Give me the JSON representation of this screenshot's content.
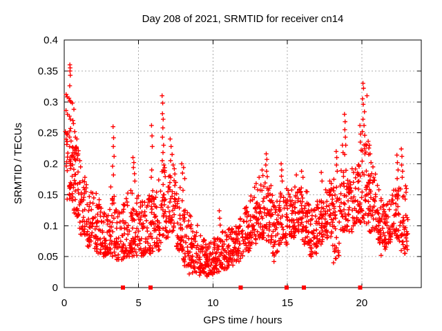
{
  "chart_data": {
    "type": "scatter",
    "title": "Day 208 of 2021, SRMTID for receiver cn14",
    "xlabel": "GPS time / hours",
    "ylabel": "SRMTID / TECUs",
    "xlim": [
      0,
      24
    ],
    "ylim": [
      0,
      0.4
    ],
    "xticks": [
      "0",
      "5",
      "10",
      "15",
      "20"
    ],
    "yticks": [
      "0",
      "0.05",
      "0.1",
      "0.15",
      "0.2",
      "0.25",
      "0.3",
      "0.35",
      "0.4"
    ],
    "grid": true,
    "legend": false,
    "marker": {
      "shape": "plus",
      "color": "#ff0000",
      "size": 6.6
    },
    "colors": {
      "grid": "#a8a8a8",
      "axis": "#000000",
      "background": "#ffffff",
      "points": "#ff0000"
    },
    "axis_event_markers": {
      "shape": "filled-square",
      "color": "#ff0000",
      "t": [
        3.95,
        5.8,
        11.85,
        14.95,
        16.1,
        19.9
      ]
    },
    "density_bands": [
      [
        0.1,
        0.6,
        0.14,
        0.26,
        44
      ],
      [
        0.6,
        1.0,
        0.115,
        0.235,
        42
      ],
      [
        1.0,
        1.5,
        0.085,
        0.185,
        40
      ],
      [
        1.5,
        2.0,
        0.065,
        0.155,
        40
      ],
      [
        2.0,
        2.5,
        0.055,
        0.135,
        40
      ],
      [
        2.5,
        3.0,
        0.05,
        0.125,
        40
      ],
      [
        3.0,
        3.5,
        0.05,
        0.165,
        40
      ],
      [
        3.5,
        4.0,
        0.045,
        0.135,
        40
      ],
      [
        4.0,
        4.5,
        0.05,
        0.16,
        40
      ],
      [
        4.5,
        5.0,
        0.05,
        0.155,
        40
      ],
      [
        5.0,
        5.5,
        0.05,
        0.145,
        40
      ],
      [
        5.5,
        6.0,
        0.055,
        0.16,
        40
      ],
      [
        6.0,
        6.5,
        0.06,
        0.175,
        40
      ],
      [
        6.5,
        7.0,
        0.08,
        0.195,
        40
      ],
      [
        7.0,
        7.5,
        0.09,
        0.185,
        40
      ],
      [
        7.5,
        8.0,
        0.06,
        0.165,
        40
      ],
      [
        8.0,
        8.5,
        0.035,
        0.125,
        40
      ],
      [
        8.5,
        9.0,
        0.022,
        0.105,
        42
      ],
      [
        9.0,
        9.5,
        0.024,
        0.085,
        42
      ],
      [
        9.5,
        10.0,
        0.02,
        0.075,
        42
      ],
      [
        10.0,
        10.5,
        0.025,
        0.085,
        40
      ],
      [
        10.5,
        11.0,
        0.03,
        0.092,
        40
      ],
      [
        11.0,
        11.5,
        0.036,
        0.1,
        40
      ],
      [
        11.5,
        12.0,
        0.042,
        0.112,
        40
      ],
      [
        12.0,
        12.5,
        0.055,
        0.13,
        40
      ],
      [
        12.5,
        13.0,
        0.07,
        0.15,
        40
      ],
      [
        13.0,
        13.5,
        0.08,
        0.17,
        40
      ],
      [
        13.5,
        14.0,
        0.07,
        0.17,
        40
      ],
      [
        14.0,
        14.5,
        0.05,
        0.14,
        40
      ],
      [
        14.5,
        15.0,
        0.07,
        0.16,
        40
      ],
      [
        15.0,
        15.5,
        0.08,
        0.16,
        40
      ],
      [
        15.5,
        16.0,
        0.09,
        0.17,
        40
      ],
      [
        16.0,
        16.5,
        0.07,
        0.16,
        40
      ],
      [
        16.5,
        17.0,
        0.05,
        0.13,
        40
      ],
      [
        17.0,
        17.5,
        0.07,
        0.15,
        40
      ],
      [
        17.5,
        18.0,
        0.08,
        0.16,
        40
      ],
      [
        18.0,
        18.5,
        0.045,
        0.18,
        40
      ],
      [
        18.5,
        19.0,
        0.085,
        0.19,
        40
      ],
      [
        19.0,
        19.5,
        0.09,
        0.18,
        40
      ],
      [
        19.5,
        20.0,
        0.1,
        0.2,
        40
      ],
      [
        20.0,
        20.5,
        0.1,
        0.24,
        42
      ],
      [
        20.5,
        21.0,
        0.09,
        0.19,
        40
      ],
      [
        21.0,
        21.5,
        0.07,
        0.15,
        40
      ],
      [
        21.5,
        22.0,
        0.06,
        0.14,
        40
      ],
      [
        22.0,
        22.5,
        0.08,
        0.16,
        40
      ],
      [
        22.5,
        23.1,
        0.055,
        0.165,
        44
      ]
    ],
    "outlier_points": [
      [
        0.38,
        0.36
      ],
      [
        0.4,
        0.355
      ],
      [
        0.39,
        0.35
      ],
      [
        0.41,
        0.343
      ],
      [
        0.37,
        0.326
      ],
      [
        0.13,
        0.312
      ],
      [
        0.2,
        0.308
      ],
      [
        0.32,
        0.306
      ],
      [
        0.38,
        0.302
      ],
      [
        0.45,
        0.3
      ],
      [
        0.55,
        0.298
      ],
      [
        0.65,
        0.288
      ],
      [
        0.12,
        0.286
      ],
      [
        0.22,
        0.28
      ],
      [
        0.35,
        0.277
      ],
      [
        0.42,
        0.272
      ],
      [
        0.58,
        0.27
      ],
      [
        0.62,
        0.265
      ],
      [
        0.08,
        0.252
      ],
      [
        0.15,
        0.248
      ],
      [
        0.7,
        0.252
      ],
      [
        0.75,
        0.243
      ],
      [
        0.85,
        0.24
      ],
      [
        1.05,
        0.205
      ],
      [
        1.1,
        0.195
      ],
      [
        2.15,
        0.152
      ],
      [
        2.35,
        0.142
      ],
      [
        3.28,
        0.26
      ],
      [
        3.32,
        0.242
      ],
      [
        3.3,
        0.228
      ],
      [
        3.35,
        0.212
      ],
      [
        3.25,
        0.196
      ],
      [
        3.31,
        0.182
      ],
      [
        4.62,
        0.21
      ],
      [
        4.68,
        0.202
      ],
      [
        4.65,
        0.194
      ],
      [
        4.72,
        0.184
      ],
      [
        4.75,
        0.172
      ],
      [
        5.87,
        0.262
      ],
      [
        5.9,
        0.245
      ],
      [
        5.92,
        0.228
      ],
      [
        5.88,
        0.19
      ],
      [
        5.85,
        0.178
      ],
      [
        6.58,
        0.31
      ],
      [
        6.62,
        0.298
      ],
      [
        6.6,
        0.281
      ],
      [
        6.65,
        0.272
      ],
      [
        6.63,
        0.258
      ],
      [
        6.6,
        0.243
      ],
      [
        6.68,
        0.23
      ],
      [
        6.64,
        0.218
      ],
      [
        6.59,
        0.205
      ],
      [
        6.7,
        0.198
      ],
      [
        7.12,
        0.24
      ],
      [
        7.18,
        0.228
      ],
      [
        7.25,
        0.215
      ],
      [
        7.15,
        0.205
      ],
      [
        7.32,
        0.198
      ],
      [
        7.4,
        0.192
      ],
      [
        7.9,
        0.2
      ],
      [
        7.95,
        0.185
      ],
      [
        8.02,
        0.194
      ],
      [
        8.1,
        0.176
      ],
      [
        8.4,
        0.022
      ],
      [
        9.1,
        0.02
      ],
      [
        9.6,
        0.018
      ],
      [
        10.1,
        0.024
      ],
      [
        10.42,
        0.124
      ],
      [
        10.45,
        0.112
      ],
      [
        10.48,
        0.101
      ],
      [
        12.8,
        0.162
      ],
      [
        12.9,
        0.168
      ],
      [
        13.1,
        0.178
      ],
      [
        13.58,
        0.216
      ],
      [
        13.62,
        0.207
      ],
      [
        13.55,
        0.198
      ],
      [
        13.6,
        0.188
      ],
      [
        13.65,
        0.179
      ],
      [
        13.3,
        0.19
      ],
      [
        13.35,
        0.181
      ],
      [
        14.1,
        0.042
      ],
      [
        14.58,
        0.2
      ],
      [
        14.62,
        0.19
      ],
      [
        14.6,
        0.18
      ],
      [
        14.65,
        0.172
      ],
      [
        15.6,
        0.182
      ],
      [
        15.95,
        0.188
      ],
      [
        16.05,
        0.178
      ],
      [
        16.6,
        0.05
      ],
      [
        17.28,
        0.186
      ],
      [
        17.33,
        0.172
      ],
      [
        17.85,
        0.172
      ],
      [
        17.95,
        0.168
      ],
      [
        18.1,
        0.04
      ],
      [
        18.28,
        0.22
      ],
      [
        18.32,
        0.21
      ],
      [
        18.3,
        0.198
      ],
      [
        18.35,
        0.188
      ],
      [
        18.7,
        0.23
      ],
      [
        18.74,
        0.218
      ],
      [
        18.84,
        0.28
      ],
      [
        18.88,
        0.268
      ],
      [
        18.86,
        0.255
      ],
      [
        18.9,
        0.243
      ],
      [
        18.92,
        0.23
      ],
      [
        18.85,
        0.215
      ],
      [
        19.35,
        0.192
      ],
      [
        19.45,
        0.186
      ],
      [
        19.88,
        0.262
      ],
      [
        19.92,
        0.248
      ],
      [
        19.9,
        0.235
      ],
      [
        19.95,
        0.222
      ],
      [
        20.08,
        0.33
      ],
      [
        20.12,
        0.322
      ],
      [
        20.05,
        0.305
      ],
      [
        20.1,
        0.296
      ],
      [
        20.18,
        0.284
      ],
      [
        20.08,
        0.272
      ],
      [
        20.15,
        0.262
      ],
      [
        20.04,
        0.252
      ],
      [
        20.2,
        0.246
      ],
      [
        20.35,
        0.31
      ],
      [
        20.52,
        0.23
      ],
      [
        20.56,
        0.216
      ],
      [
        20.62,
        0.202
      ],
      [
        20.75,
        0.195
      ],
      [
        21.05,
        0.165
      ],
      [
        21.15,
        0.158
      ],
      [
        21.3,
        0.052
      ],
      [
        22.36,
        0.214
      ],
      [
        22.4,
        0.202
      ],
      [
        22.44,
        0.19
      ],
      [
        22.38,
        0.176
      ],
      [
        22.66,
        0.224
      ],
      [
        22.7,
        0.212
      ],
      [
        22.68,
        0.198
      ],
      [
        22.74,
        0.188
      ],
      [
        22.72,
        0.178
      ],
      [
        23.0,
        0.16
      ]
    ]
  }
}
